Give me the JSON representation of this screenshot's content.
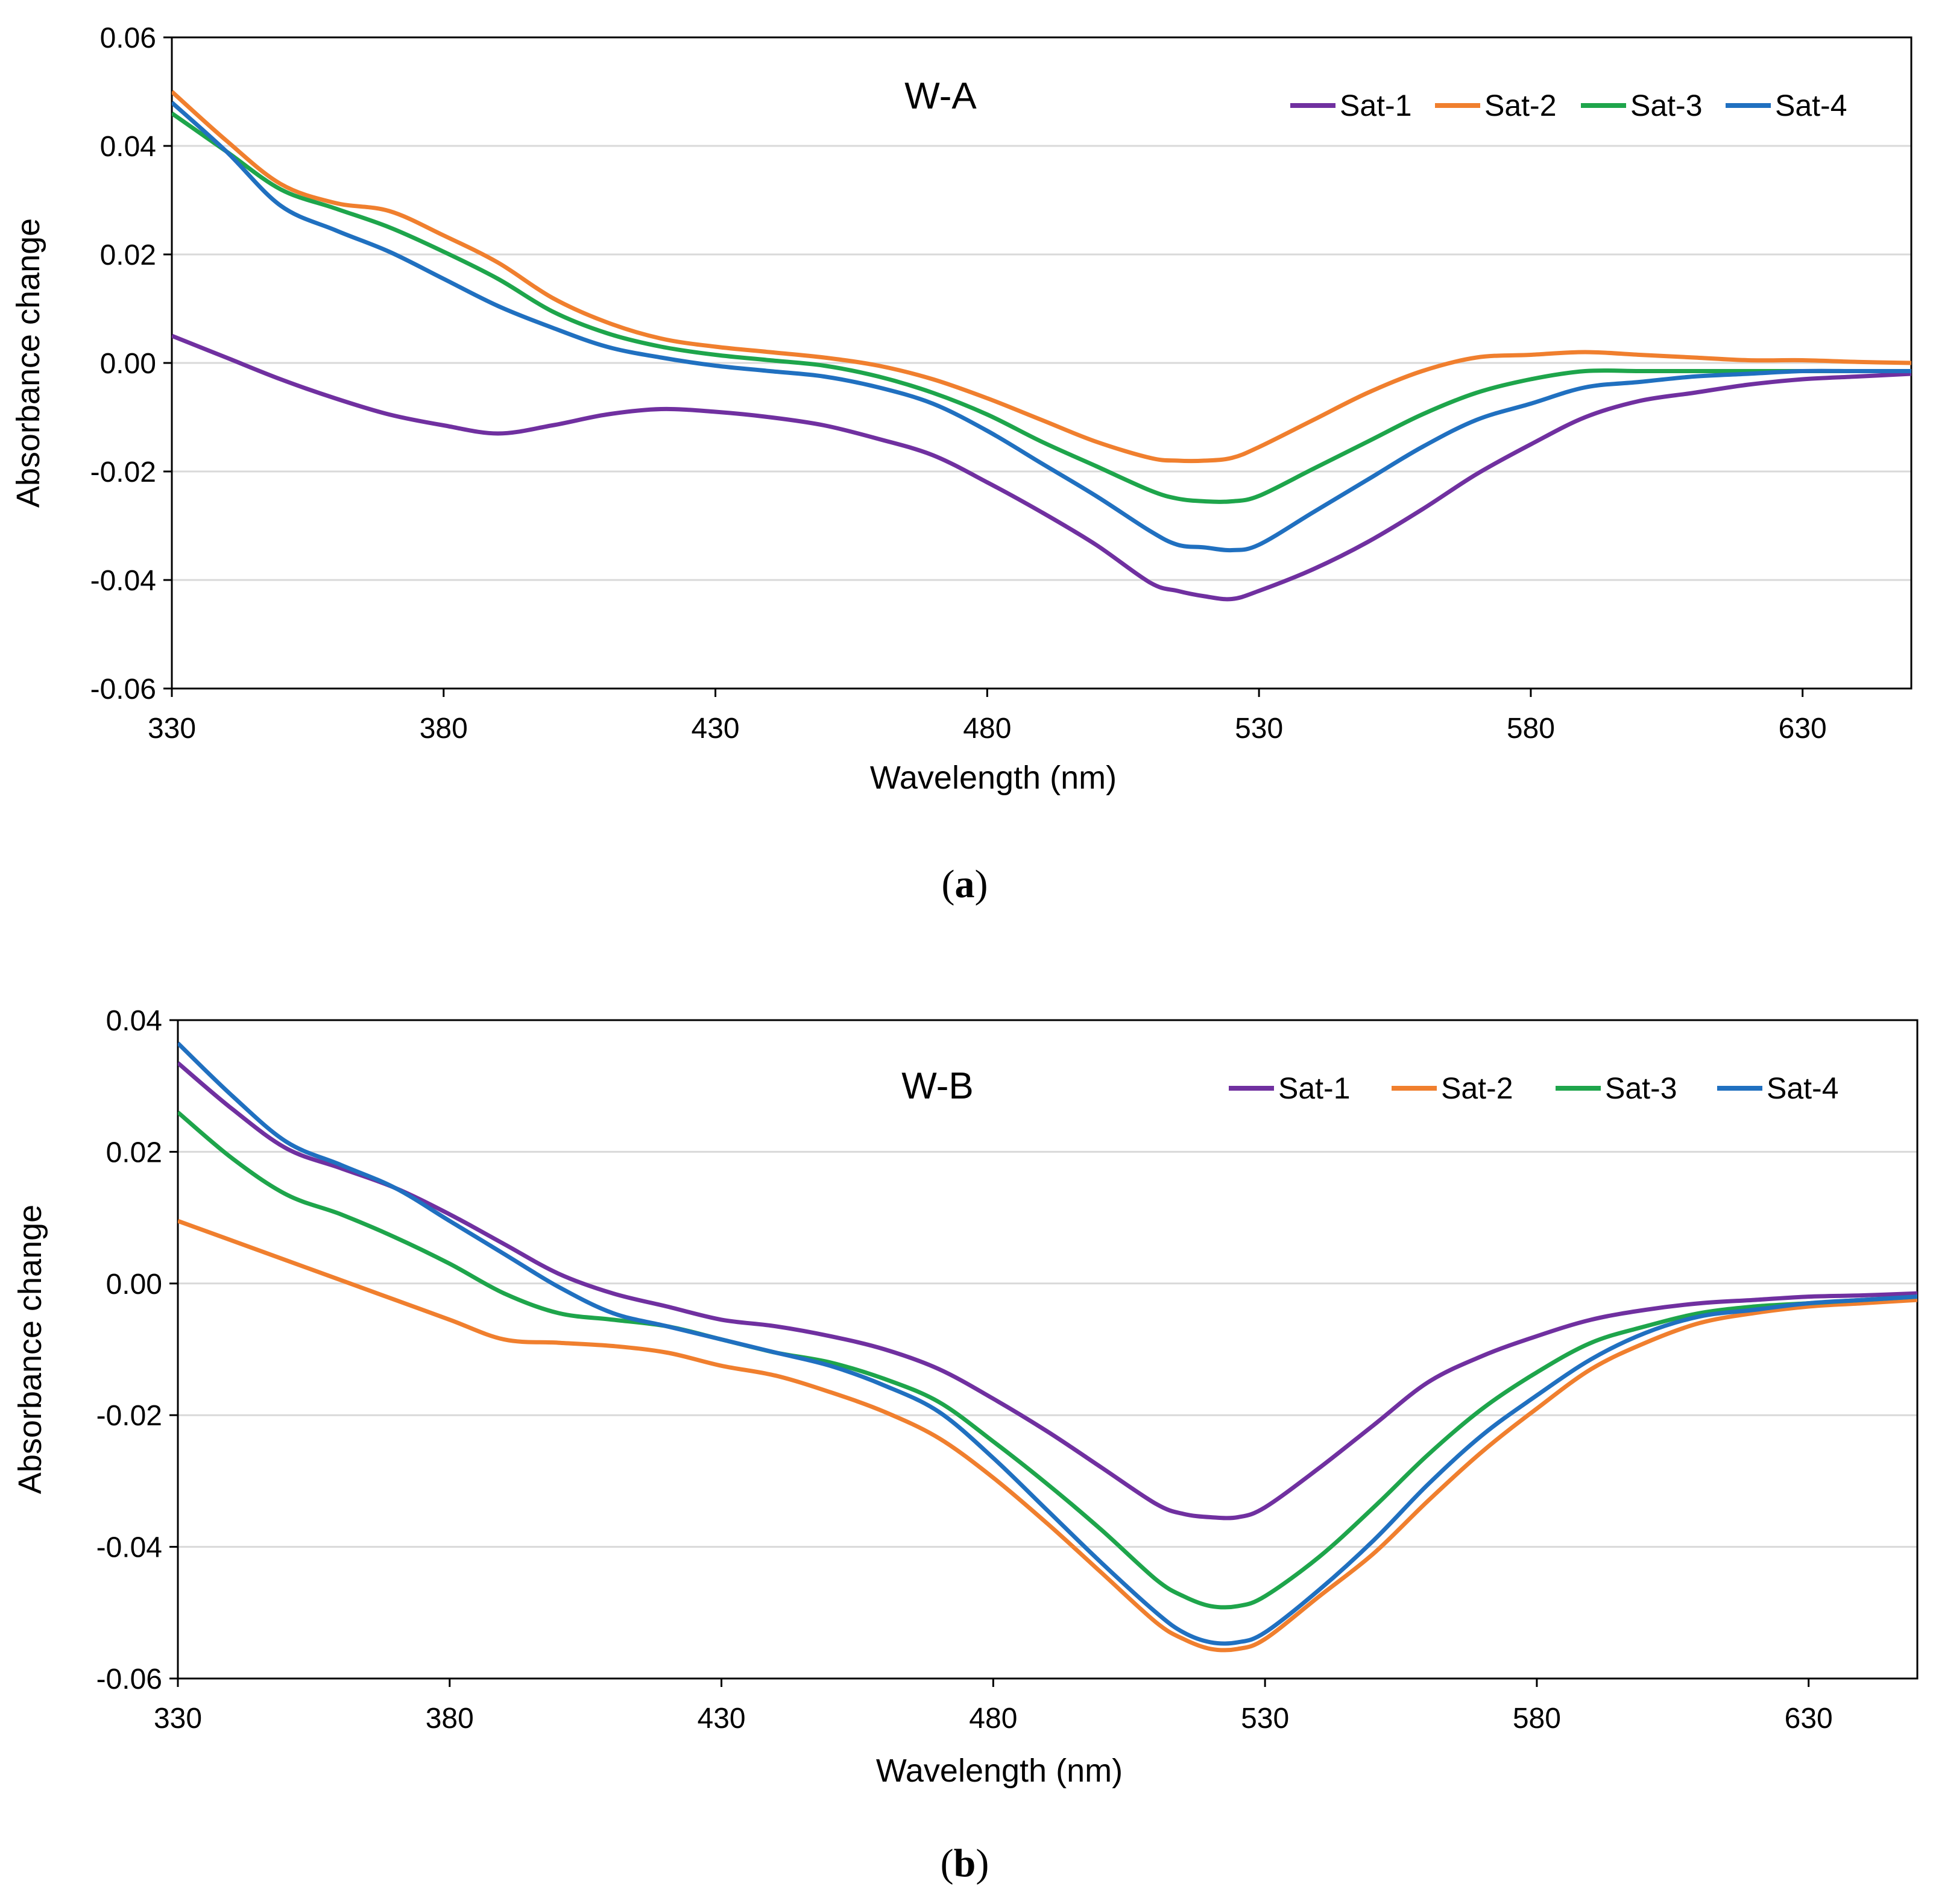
{
  "chart_data": [
    {
      "type": "line",
      "panel_label": "a",
      "title": "W-A",
      "xlabel": "Wavelength (nm)",
      "ylabel": "Absorbance change",
      "xlim": [
        330,
        650
      ],
      "ylim": [
        -0.06,
        0.06
      ],
      "x_ticks": [
        "330",
        "380",
        "430",
        "480",
        "530",
        "580",
        "630"
      ],
      "y_ticks": [
        "0.06",
        "0.04",
        "0.02",
        "0.00",
        "-0.02",
        "-0.04",
        "-0.06"
      ],
      "grid": true,
      "legend_position": "top-right",
      "x": [
        330,
        340,
        350,
        360,
        370,
        380,
        390,
        400,
        410,
        420,
        430,
        440,
        450,
        460,
        470,
        480,
        490,
        500,
        510,
        515,
        520,
        525,
        530,
        540,
        550,
        560,
        570,
        580,
        590,
        600,
        610,
        620,
        630,
        640,
        650
      ],
      "series": [
        {
          "name": "Sat-1",
          "color": "#7030A0",
          "values": [
            0.005,
            0.001,
            -0.003,
            -0.0065,
            -0.0095,
            -0.0115,
            -0.013,
            -0.0115,
            -0.0095,
            -0.0085,
            -0.009,
            -0.01,
            -0.0115,
            -0.014,
            -0.017,
            -0.022,
            -0.0275,
            -0.0335,
            -0.0405,
            -0.042,
            -0.043,
            -0.0435,
            -0.042,
            -0.038,
            -0.033,
            -0.027,
            -0.0205,
            -0.015,
            -0.01,
            -0.007,
            -0.0055,
            -0.004,
            -0.003,
            -0.0025,
            -0.002
          ]
        },
        {
          "name": "Sat-2",
          "color": "#F07F2E",
          "values": [
            0.05,
            0.041,
            0.033,
            0.0295,
            0.028,
            0.0235,
            0.0185,
            0.012,
            0.0075,
            0.0045,
            0.003,
            0.002,
            0.001,
            -0.0005,
            -0.003,
            -0.0065,
            -0.0105,
            -0.0145,
            -0.0175,
            -0.018,
            -0.018,
            -0.0175,
            -0.0155,
            -0.0105,
            -0.0055,
            -0.0015,
            0.001,
            0.0015,
            0.002,
            0.0015,
            0.001,
            0.0005,
            0.0005,
            0.0002,
            0.0
          ]
        },
        {
          "name": "Sat-3",
          "color": "#1EA54B",
          "values": [
            0.046,
            0.039,
            0.032,
            0.0285,
            0.025,
            0.0205,
            0.0155,
            0.0095,
            0.0055,
            0.003,
            0.0015,
            0.0005,
            -0.0005,
            -0.0025,
            -0.0055,
            -0.0095,
            -0.0145,
            -0.019,
            -0.0235,
            -0.025,
            -0.0255,
            -0.0255,
            -0.0245,
            -0.0195,
            -0.0145,
            -0.0095,
            -0.0055,
            -0.003,
            -0.0015,
            -0.0015,
            -0.0015,
            -0.0015,
            -0.0015,
            -0.0015,
            -0.0015
          ]
        },
        {
          "name": "Sat-4",
          "color": "#2070C0",
          "values": [
            0.048,
            0.039,
            0.029,
            0.0245,
            0.0205,
            0.0155,
            0.0105,
            0.0065,
            0.003,
            0.001,
            -0.0005,
            -0.0015,
            -0.0025,
            -0.0045,
            -0.0075,
            -0.0125,
            -0.0185,
            -0.0245,
            -0.031,
            -0.0335,
            -0.034,
            -0.0345,
            -0.0335,
            -0.0275,
            -0.0215,
            -0.0155,
            -0.0105,
            -0.0075,
            -0.0045,
            -0.0035,
            -0.0025,
            -0.002,
            -0.0015,
            -0.0015,
            -0.0015
          ]
        }
      ]
    },
    {
      "type": "line",
      "panel_label": "b",
      "title": "W-B",
      "xlabel": "Wavelength (nm)",
      "ylabel": "Absorbance change",
      "xlim": [
        330,
        650
      ],
      "ylim": [
        -0.06,
        0.04
      ],
      "x_ticks": [
        "330",
        "380",
        "430",
        "480",
        "530",
        "580",
        "630"
      ],
      "y_ticks": [
        "0.04",
        "0.02",
        "0.00",
        "-0.02",
        "-0.04",
        "-0.06"
      ],
      "grid": true,
      "legend_position": "top-right",
      "x": [
        330,
        340,
        350,
        360,
        370,
        380,
        390,
        400,
        410,
        420,
        430,
        440,
        450,
        460,
        470,
        480,
        490,
        500,
        510,
        515,
        520,
        525,
        530,
        540,
        550,
        560,
        570,
        580,
        590,
        600,
        610,
        620,
        630,
        640,
        650
      ],
      "series": [
        {
          "name": "Sat-1",
          "color": "#7030A0",
          "values": [
            0.0335,
            0.0265,
            0.0205,
            0.0175,
            0.0145,
            0.0105,
            0.006,
            0.0015,
            -0.0015,
            -0.0035,
            -0.0055,
            -0.0065,
            -0.008,
            -0.01,
            -0.013,
            -0.0175,
            -0.0225,
            -0.028,
            -0.0335,
            -0.035,
            -0.0355,
            -0.0355,
            -0.034,
            -0.028,
            -0.0215,
            -0.015,
            -0.011,
            -0.008,
            -0.0055,
            -0.004,
            -0.003,
            -0.0025,
            -0.002,
            -0.0018,
            -0.0015
          ]
        },
        {
          "name": "Sat-2",
          "color": "#F07F2E",
          "values": [
            0.0095,
            0.0065,
            0.0035,
            0.0005,
            -0.0025,
            -0.0055,
            -0.0085,
            -0.009,
            -0.0095,
            -0.0105,
            -0.0125,
            -0.014,
            -0.0165,
            -0.0195,
            -0.0235,
            -0.0295,
            -0.0365,
            -0.044,
            -0.0515,
            -0.054,
            -0.0555,
            -0.0555,
            -0.054,
            -0.0475,
            -0.041,
            -0.033,
            -0.0255,
            -0.019,
            -0.013,
            -0.009,
            -0.006,
            -0.0045,
            -0.0035,
            -0.003,
            -0.0025
          ]
        },
        {
          "name": "Sat-3",
          "color": "#1EA54B",
          "values": [
            0.026,
            0.019,
            0.0135,
            0.0105,
            0.007,
            0.003,
            -0.0015,
            -0.0045,
            -0.0055,
            -0.0065,
            -0.0085,
            -0.0105,
            -0.012,
            -0.0145,
            -0.018,
            -0.024,
            -0.0305,
            -0.0375,
            -0.045,
            -0.0475,
            -0.049,
            -0.049,
            -0.0475,
            -0.0415,
            -0.034,
            -0.026,
            -0.019,
            -0.0135,
            -0.009,
            -0.0065,
            -0.0045,
            -0.0035,
            -0.003,
            -0.0025,
            -0.002
          ]
        },
        {
          "name": "Sat-4",
          "color": "#2070C0",
          "values": [
            0.0365,
            0.0285,
            0.0215,
            0.018,
            0.0145,
            0.0095,
            0.0045,
            -0.0005,
            -0.0045,
            -0.0065,
            -0.0085,
            -0.0105,
            -0.0125,
            -0.0155,
            -0.0195,
            -0.0265,
            -0.0345,
            -0.0425,
            -0.05,
            -0.053,
            -0.0545,
            -0.0545,
            -0.053,
            -0.0465,
            -0.039,
            -0.0305,
            -0.023,
            -0.017,
            -0.0115,
            -0.0075,
            -0.005,
            -0.004,
            -0.003,
            -0.0025,
            -0.002
          ]
        }
      ]
    }
  ]
}
